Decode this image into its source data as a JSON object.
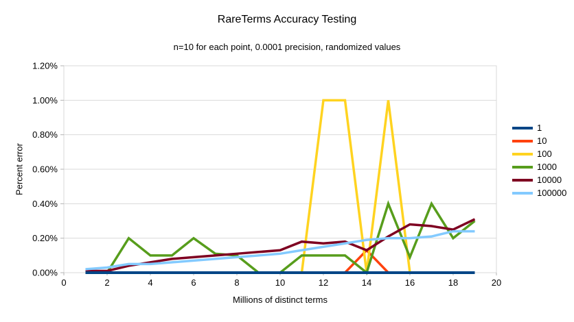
{
  "chart_data": {
    "type": "line",
    "title": "RareTerms Accuracy Testing",
    "subtitle": "n=10 for each point, 0.0001 precision, randomized values",
    "xlabel": "Millions of distinct terms",
    "ylabel": "Percent error",
    "xlim": [
      0,
      20
    ],
    "ylim": [
      0,
      1.2
    ],
    "grid": "horizontal",
    "legend_position": "right",
    "x": [
      1,
      2,
      3,
      4,
      5,
      6,
      7,
      8,
      9,
      10,
      11,
      12,
      13,
      14,
      15,
      16,
      17,
      18,
      19
    ],
    "series": [
      {
        "name": "1",
        "color": "#004586",
        "width": 4,
        "values": [
          0,
          0,
          0,
          0,
          0,
          0,
          0,
          0,
          0,
          0,
          0,
          0,
          0,
          0,
          0,
          0,
          0,
          0,
          0
        ]
      },
      {
        "name": "10",
        "color": "#ff420e",
        "width": 3.5,
        "values": [
          0,
          0,
          0,
          0,
          0,
          0,
          0,
          0,
          0,
          0,
          0,
          0,
          0,
          0.13,
          0,
          0,
          0,
          0,
          0
        ]
      },
      {
        "name": "100",
        "color": "#ffd320",
        "width": 3.5,
        "values": [
          0,
          0,
          0,
          0,
          0,
          0,
          0,
          0,
          0,
          0,
          0,
          1.0,
          1.0,
          0,
          1.0,
          0,
          0,
          0,
          0
        ]
      },
      {
        "name": "1000",
        "color": "#579d1c",
        "width": 3.5,
        "values": [
          0,
          0,
          0.2,
          0.1,
          0.1,
          0.2,
          0.11,
          0.1,
          0,
          0,
          0.1,
          0.1,
          0.1,
          0,
          0.4,
          0.09,
          0.4,
          0.2,
          0.3
        ]
      },
      {
        "name": "10000",
        "color": "#7e0021",
        "width": 3.5,
        "values": [
          0.01,
          0.01,
          0.04,
          0.06,
          0.08,
          0.09,
          0.1,
          0.11,
          0.12,
          0.13,
          0.18,
          0.17,
          0.18,
          0.13,
          0.21,
          0.28,
          0.27,
          0.25,
          0.31
        ]
      },
      {
        "name": "100000",
        "color": "#83caff",
        "width": 3.5,
        "values": [
          0.02,
          0.03,
          0.05,
          0.05,
          0.06,
          0.07,
          0.08,
          0.09,
          0.1,
          0.11,
          0.13,
          0.15,
          0.17,
          0.19,
          0.2,
          0.2,
          0.21,
          0.24,
          0.24
        ]
      }
    ],
    "draw_order": [
      "10",
      "100",
      "1000",
      "10000",
      "100000",
      "1"
    ],
    "x_ticks": {
      "values": [
        0,
        2,
        4,
        6,
        8,
        10,
        12,
        14,
        16,
        18,
        20
      ],
      "labels": [
        "0",
        "2",
        "4",
        "6",
        "8",
        "10",
        "12",
        "14",
        "16",
        "18",
        "20"
      ]
    },
    "y_ticks": {
      "values": [
        0,
        0.2,
        0.4,
        0.6,
        0.8,
        1.0,
        1.2
      ],
      "labels": [
        "0.00%",
        "0.20%",
        "0.40%",
        "0.60%",
        "0.80%",
        "1.00%",
        "1.20%"
      ]
    },
    "style": {
      "grid_color": "#d9d9d9",
      "border_color": "#d9d9d9",
      "axis_color": "#b3b3b3",
      "text_color": "#000000"
    }
  }
}
